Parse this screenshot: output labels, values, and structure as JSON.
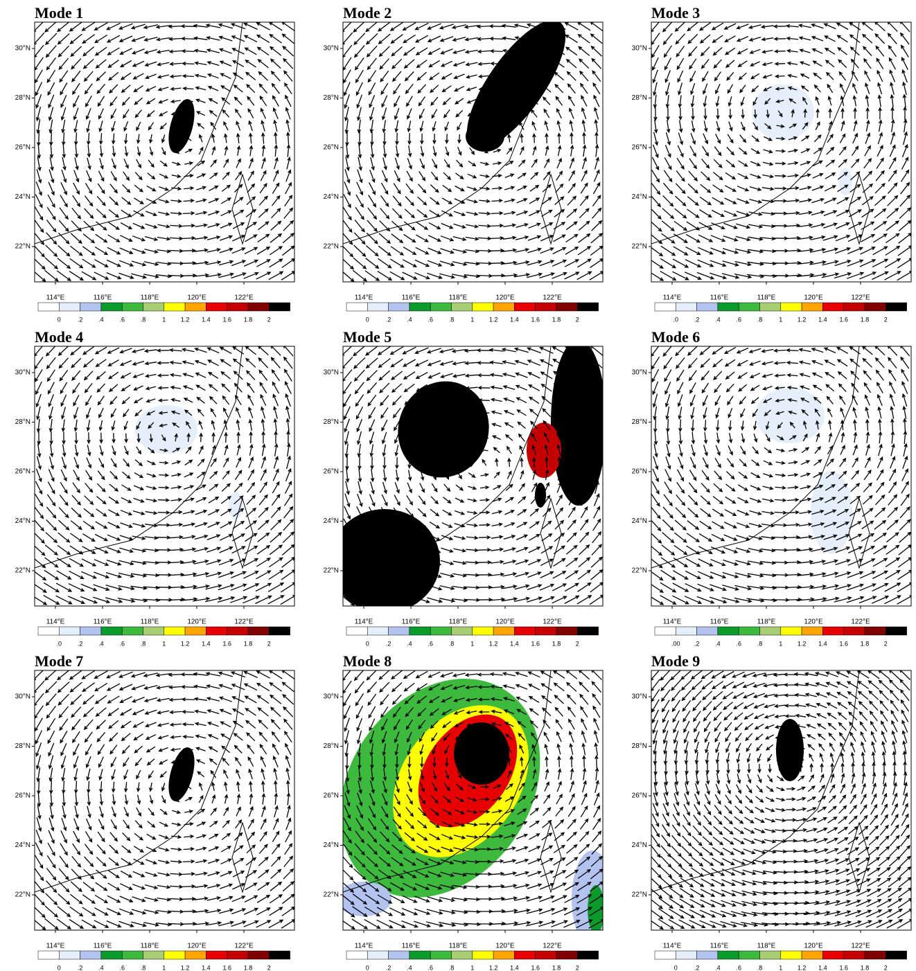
{
  "panels": [
    {
      "title": "Mode 1",
      "colorbar_labels": [
        "0",
        ".2",
        ".4",
        ".6",
        ".8",
        "1",
        "1.2",
        "1.4",
        "1.6",
        "1.8",
        "2"
      ]
    },
    {
      "title": "Mode 2",
      "colorbar_labels": [
        "0",
        ".2",
        ".4",
        ".6",
        ".8",
        "1",
        "1.2",
        "1.4",
        "1.6",
        "1.8",
        "2"
      ]
    },
    {
      "title": "Mode 3",
      "colorbar_labels": [
        ".0",
        ".2",
        ".4",
        ".6",
        ".8",
        "1",
        "1.2",
        "1.4",
        "1.6",
        "1.8",
        "2"
      ]
    },
    {
      "title": "Mode 4",
      "colorbar_labels": [
        ".0",
        ".2",
        ".4",
        ".6",
        ".8",
        "1",
        "1.2",
        "1.4",
        "1.6",
        "1.8",
        "2"
      ]
    },
    {
      "title": "Mode 5",
      "colorbar_labels": [
        "0",
        ".2",
        ".4",
        ".6",
        ".8",
        "1",
        "1.2",
        "1.4",
        "1.6",
        "1.8",
        "2"
      ]
    },
    {
      "title": "Mode 6",
      "colorbar_labels": [
        ".00",
        ".2",
        ".4",
        ".6",
        ".8",
        "1",
        "1.2",
        "1.4",
        "1.6",
        "1.8",
        "2"
      ]
    },
    {
      "title": "Mode 7",
      "colorbar_labels": [
        "0",
        ".2",
        ".4",
        ".6",
        ".8",
        "1",
        "1.2",
        "1.4",
        "1.6",
        "1.8",
        "2"
      ]
    },
    {
      "title": "Mode 8",
      "colorbar_labels": [
        "0",
        ".2",
        ".4",
        ".6",
        ".8",
        "1",
        "1.2",
        "1.4",
        "1.6",
        "1.8",
        "2"
      ]
    },
    {
      "title": "Mode 9",
      "colorbar_labels": [
        "0",
        ".2",
        ".4",
        ".6",
        ".8",
        "1",
        "1.2",
        "1.4",
        "1.6",
        "1.8",
        "2"
      ]
    }
  ],
  "lat_labels": [
    "22°N",
    "24°N",
    "26°N",
    "28°N",
    "30°N"
  ],
  "lon_labels": [
    "114°E",
    "116°E",
    "118°E",
    "120°E",
    "122°E"
  ],
  "colorbar_colors": [
    "#ffffff",
    "#e4effb",
    "#b3c3ef",
    "#0b9a2c",
    "#3db93d",
    "#a9cd72",
    "#ffff00",
    "#ffa500",
    "#e60000",
    "#c40000",
    "#7e0000",
    "#000000"
  ]
}
